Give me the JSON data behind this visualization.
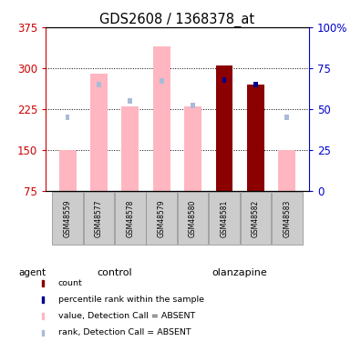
{
  "title": "GDS2608 / 1368378_at",
  "samples": [
    "GSM48559",
    "GSM48577",
    "GSM48578",
    "GSM48579",
    "GSM48580",
    "GSM48581",
    "GSM48582",
    "GSM48583"
  ],
  "ylim_left": [
    75,
    375
  ],
  "ylim_right": [
    0,
    100
  ],
  "yticks_left": [
    75,
    150,
    225,
    300,
    375
  ],
  "yticks_right": [
    0,
    25,
    50,
    75,
    100
  ],
  "absent_value": [
    150,
    290,
    230,
    340,
    230,
    null,
    270,
    150
  ],
  "absent_rank_pct": [
    45,
    65,
    55,
    67,
    52,
    null,
    null,
    45
  ],
  "present_count": [
    null,
    null,
    null,
    null,
    null,
    305,
    270,
    null
  ],
  "present_rank_pct": [
    null,
    null,
    null,
    null,
    null,
    68,
    65,
    null
  ],
  "absent_value_color": "#FFB6C1",
  "absent_rank_color": "#AABBD8",
  "present_count_color": "#8B0000",
  "present_rank_color": "#00008B",
  "left_tick_color": "#CC0000",
  "right_tick_color": "#0000CC",
  "control_color_light": "#CCFFCC",
  "olanzapine_color_dark": "#33CC33",
  "sample_box_color": "#CCCCCC",
  "legend_items": [
    {
      "color": "#8B0000",
      "label": "count"
    },
    {
      "color": "#00008B",
      "label": "percentile rank within the sample"
    },
    {
      "color": "#FFB6C1",
      "label": "value, Detection Call = ABSENT"
    },
    {
      "color": "#AABBD8",
      "label": "rank, Detection Call = ABSENT"
    }
  ]
}
